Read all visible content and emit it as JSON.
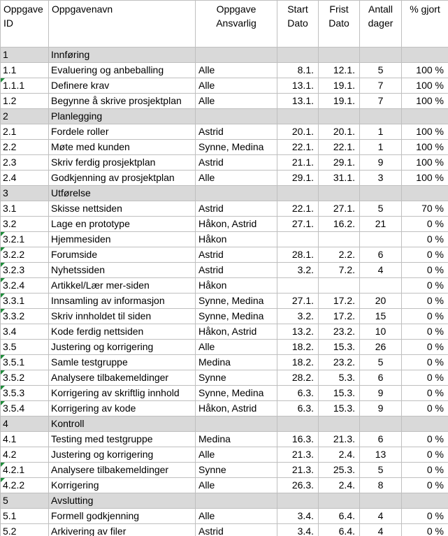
{
  "header": {
    "id": [
      "Oppgave",
      "ID"
    ],
    "name": "Oppgavenavn",
    "responsible": [
      "Oppgave",
      "Ansvarlig"
    ],
    "start": [
      "Start",
      "Dato"
    ],
    "due": [
      "Frist",
      "Dato"
    ],
    "days": [
      "Antall",
      "dager"
    ],
    "done": "% gjort"
  },
  "rows": [
    {
      "type": "section",
      "id": "1",
      "name": "Innføring"
    },
    {
      "id": "1.1",
      "name": "Evaluering og anbeballing",
      "resp": "Alle",
      "start": "8.1.",
      "due": "12.1.",
      "days": "5",
      "pct": "100 %"
    },
    {
      "id": "1.1.1",
      "name": "Definere krav",
      "resp": "Alle",
      "start": "13.1.",
      "due": "19.1.",
      "days": "7",
      "pct": "100 %",
      "flag": true
    },
    {
      "id": "1.2",
      "name": "Begynne å skrive prosjektplan",
      "resp": "Alle",
      "start": "13.1.",
      "due": "19.1.",
      "days": "7",
      "pct": "100 %"
    },
    {
      "type": "section",
      "id": "2",
      "name": "Planlegging"
    },
    {
      "id": "2.1",
      "name": "Fordele roller",
      "resp": "Astrid",
      "start": "20.1.",
      "due": "20.1.",
      "days": "1",
      "pct": "100 %"
    },
    {
      "id": "2.2",
      "name": "Møte med kunden",
      "resp": "Synne, Medina",
      "start": "22.1.",
      "due": "22.1.",
      "days": "1",
      "pct": "100 %"
    },
    {
      "id": "2.3",
      "name": "Skriv ferdig prosjektplan",
      "resp": "Astrid",
      "start": "21.1.",
      "due": "29.1.",
      "days": "9",
      "pct": "100 %"
    },
    {
      "id": "2.4",
      "name": "Godkjenning av prosjektplan",
      "resp": "Alle",
      "start": "29.1.",
      "due": "31.1.",
      "days": "3",
      "pct": "100 %"
    },
    {
      "type": "section",
      "id": "3",
      "name": "Utførelse"
    },
    {
      "id": "3.1",
      "name": "Skisse nettsiden",
      "resp": "Astrid",
      "start": "22.1.",
      "due": "27.1.",
      "days": "5",
      "pct": "70 %"
    },
    {
      "id": "3.2",
      "name": "Lage en prototype",
      "resp": "Håkon, Astrid",
      "start": "27.1.",
      "due": "16.2.",
      "days": "21",
      "pct": "0 %"
    },
    {
      "id": "3.2.1",
      "name": "Hjemmesiden",
      "resp": "Håkon",
      "start": "",
      "due": "",
      "days": "",
      "pct": "0 %",
      "flag": true
    },
    {
      "id": "3.2.2",
      "name": "Forumside",
      "resp": "Astrid",
      "start": "28.1.",
      "due": "2.2.",
      "days": "6",
      "pct": "0 %",
      "flag": true
    },
    {
      "id": "3.2.3",
      "name": "Nyhetssiden",
      "resp": "Astrid",
      "start": "3.2.",
      "due": "7.2.",
      "days": "4",
      "pct": "0 %",
      "flag": true
    },
    {
      "id": "3.2.4",
      "name": "Artikkel/Lær mer-siden",
      "resp": "Håkon",
      "start": "",
      "due": "",
      "days": "",
      "pct": "0 %",
      "flag": true
    },
    {
      "id": "3.3.1",
      "name": "Innsamling av informasjon",
      "resp": "Synne, Medina",
      "start": "27.1.",
      "due": "17.2.",
      "days": "20",
      "pct": "0 %",
      "flag": true
    },
    {
      "id": "3.3.2",
      "name": "Skriv innholdet til siden",
      "resp": "Synne, Medina",
      "start": "3.2.",
      "due": "17.2.",
      "days": "15",
      "pct": "0 %",
      "flag": true
    },
    {
      "id": "3.4",
      "name": "Kode ferdig nettsiden",
      "resp": "Håkon, Astrid",
      "start": "13.2.",
      "due": "23.2.",
      "days": "10",
      "pct": "0 %"
    },
    {
      "id": "3.5",
      "name": "Justering og korrigering",
      "resp": "Alle",
      "start": "18.2.",
      "due": "15.3.",
      "days": "26",
      "pct": "0 %"
    },
    {
      "id": "3.5.1",
      "name": "Samle testgruppe",
      "resp": "Medina",
      "start": "18.2.",
      "due": "23.2.",
      "days": "5",
      "pct": "0 %",
      "flag": true
    },
    {
      "id": "3.5.2",
      "name": "Analysere tilbakemeldinger",
      "resp": "Synne",
      "start": "28.2.",
      "due": "5.3.",
      "days": "6",
      "pct": "0 %",
      "flag": true
    },
    {
      "id": "3.5.3",
      "name": "Korrigering av skriftlig innhold",
      "resp": "Synne, Medina",
      "start": "6.3.",
      "due": "15.3.",
      "days": "9",
      "pct": "0 %",
      "flag": true
    },
    {
      "id": "3.5.4",
      "name": "Korrigering av kode",
      "resp": "Håkon, Astrid",
      "start": "6.3.",
      "due": "15.3.",
      "days": "9",
      "pct": "0 %",
      "flag": true
    },
    {
      "type": "section",
      "id": "4",
      "name": "Kontroll"
    },
    {
      "id": "4.1",
      "name": "Testing med testgruppe",
      "resp": "Medina",
      "start": "16.3.",
      "due": "21.3.",
      "days": "6",
      "pct": "0 %"
    },
    {
      "id": "4.2",
      "name": "Justering og korrigering",
      "resp": "Alle",
      "start": "21.3.",
      "due": "2.4.",
      "days": "13",
      "pct": "0 %"
    },
    {
      "id": "4.2.1",
      "name": "Analysere tilbakemeldinger",
      "resp": "Synne",
      "start": "21.3.",
      "due": "25.3.",
      "days": "5",
      "pct": "0 %",
      "flag": true
    },
    {
      "id": "4.2.2",
      "name": "Korrigering",
      "resp": "Alle",
      "start": "26.3.",
      "due": "2.4.",
      "days": "8",
      "pct": "0 %",
      "flag": true
    },
    {
      "type": "section",
      "id": "5",
      "name": "Avslutting"
    },
    {
      "id": "5.1",
      "name": "Formell godkjenning",
      "resp": "Alle",
      "start": "3.4.",
      "due": "6.4.",
      "days": "4",
      "pct": "0 %"
    },
    {
      "id": "5.2",
      "name": "Arkivering av filer",
      "resp": "Astrid",
      "start": "3.4.",
      "due": "6.4.",
      "days": "4",
      "pct": "0 %"
    }
  ]
}
